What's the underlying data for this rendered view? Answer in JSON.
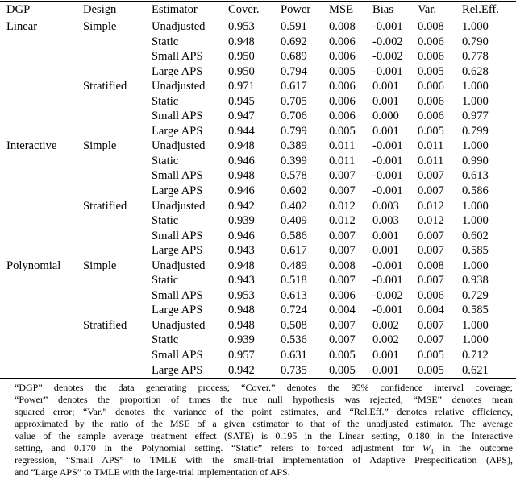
{
  "table": {
    "columns": [
      "DGP",
      "Design",
      "Estimator",
      "Cover.",
      "Power",
      "MSE",
      "Bias",
      "Var.",
      "Rel.Eff."
    ],
    "rows": [
      [
        "Linear",
        "Simple",
        "Unadjusted",
        "0.953",
        "0.591",
        "0.008",
        "-0.001",
        "0.008",
        "1.000"
      ],
      [
        "",
        "",
        "Static",
        "0.948",
        "0.692",
        "0.006",
        "-0.002",
        "0.006",
        "0.790"
      ],
      [
        "",
        "",
        "Small APS",
        "0.950",
        "0.689",
        "0.006",
        "-0.002",
        "0.006",
        "0.778"
      ],
      [
        "",
        "",
        "Large APS",
        "0.950",
        "0.794",
        "0.005",
        "-0.001",
        "0.005",
        "0.628"
      ],
      [
        "",
        "Stratified",
        "Unadjusted",
        "0.971",
        "0.617",
        "0.006",
        "0.001",
        "0.006",
        "1.000"
      ],
      [
        "",
        "",
        "Static",
        "0.945",
        "0.705",
        "0.006",
        "0.001",
        "0.006",
        "1.000"
      ],
      [
        "",
        "",
        "Small APS",
        "0.947",
        "0.706",
        "0.006",
        "0.000",
        "0.006",
        "0.977"
      ],
      [
        "",
        "",
        "Large APS",
        "0.944",
        "0.799",
        "0.005",
        "0.001",
        "0.005",
        "0.799"
      ],
      [
        "Interactive",
        "Simple",
        "Unadjusted",
        "0.948",
        "0.389",
        "0.011",
        "-0.001",
        "0.011",
        "1.000"
      ],
      [
        "",
        "",
        "Static",
        "0.946",
        "0.399",
        "0.011",
        "-0.001",
        "0.011",
        "0.990"
      ],
      [
        "",
        "",
        "Small APS",
        "0.948",
        "0.578",
        "0.007",
        "-0.001",
        "0.007",
        "0.613"
      ],
      [
        "",
        "",
        "Large APS",
        "0.946",
        "0.602",
        "0.007",
        "-0.001",
        "0.007",
        "0.586"
      ],
      [
        "",
        "Stratified",
        "Unadjusted",
        "0.942",
        "0.402",
        "0.012",
        "0.003",
        "0.012",
        "1.000"
      ],
      [
        "",
        "",
        "Static",
        "0.939",
        "0.409",
        "0.012",
        "0.003",
        "0.012",
        "1.000"
      ],
      [
        "",
        "",
        "Small APS",
        "0.946",
        "0.586",
        "0.007",
        "0.001",
        "0.007",
        "0.602"
      ],
      [
        "",
        "",
        "Large APS",
        "0.943",
        "0.617",
        "0.007",
        "0.001",
        "0.007",
        "0.585"
      ],
      [
        "Polynomial",
        "Simple",
        "Unadjusted",
        "0.948",
        "0.489",
        "0.008",
        "-0.001",
        "0.008",
        "1.000"
      ],
      [
        "",
        "",
        "Static",
        "0.943",
        "0.518",
        "0.007",
        "-0.001",
        "0.007",
        "0.938"
      ],
      [
        "",
        "",
        "Small APS",
        "0.953",
        "0.613",
        "0.006",
        "-0.002",
        "0.006",
        "0.729"
      ],
      [
        "",
        "",
        "Large APS",
        "0.948",
        "0.724",
        "0.004",
        "-0.001",
        "0.004",
        "0.585"
      ],
      [
        "",
        "Stratified",
        "Unadjusted",
        "0.948",
        "0.508",
        "0.007",
        "0.002",
        "0.007",
        "1.000"
      ],
      [
        "",
        "",
        "Static",
        "0.939",
        "0.536",
        "0.007",
        "0.002",
        "0.007",
        "1.000"
      ],
      [
        "",
        "",
        "Small APS",
        "0.957",
        "0.631",
        "0.005",
        "0.001",
        "0.005",
        "0.712"
      ],
      [
        "",
        "",
        "Large APS",
        "0.942",
        "0.735",
        "0.005",
        "0.001",
        "0.005",
        "0.621"
      ]
    ]
  },
  "footnote": {
    "l1": "“DGP” denotes the data generating process; “Cover.”  denotes the 95% confidence interval coverage;",
    "l2": "“Power” denotes the proportion of times the true null hypothesis was rejected; “MSE” denotes mean",
    "l3": "squared error; “Var.”  denotes the variance of the point estimates, and “Rel.Eff.”  denotes relative efficiency,",
    "l4": "approximated by the ratio of the MSE of a given estimator to that of the unadjusted estimator.  The average",
    "l5": "value of the sample average treatment effect (SATE) is 0.195 in the Linear setting, 0.180 in the Interactive",
    "l6_pre": "setting, and 0.170 in the Polynomial setting.  “Static” refers to forced adjustment for ",
    "l6_var": "W",
    "l6_sub": "1",
    "l6_post": " in the outcome",
    "l7": "regression, “Small APS” to TMLE with the small-trial implementation of Adaptive Prespecification (APS),",
    "l8": "and “Large APS” to TMLE with the large-trial implementation of APS."
  }
}
